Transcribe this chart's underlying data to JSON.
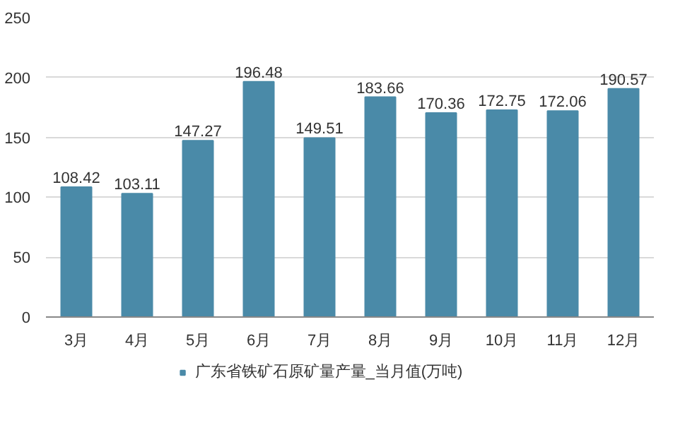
{
  "chart_data": {
    "type": "bar",
    "categories": [
      "3月",
      "4月",
      "5月",
      "6月",
      "7月",
      "8月",
      "9月",
      "10月",
      "11月",
      "12月"
    ],
    "series": [
      {
        "name": "广东省铁矿石原矿量产量_当月值(万吨)",
        "color": "#4a8aa8",
        "values": [
          108.42,
          103.11,
          147.27,
          196.48,
          149.51,
          183.66,
          170.36,
          172.75,
          172.06,
          190.57
        ]
      }
    ],
    "ylim": [
      0,
      250
    ],
    "yticks": [
      0,
      50,
      100,
      150,
      200,
      250
    ],
    "grid": "y",
    "legend": "bottom",
    "data_labels": true
  }
}
